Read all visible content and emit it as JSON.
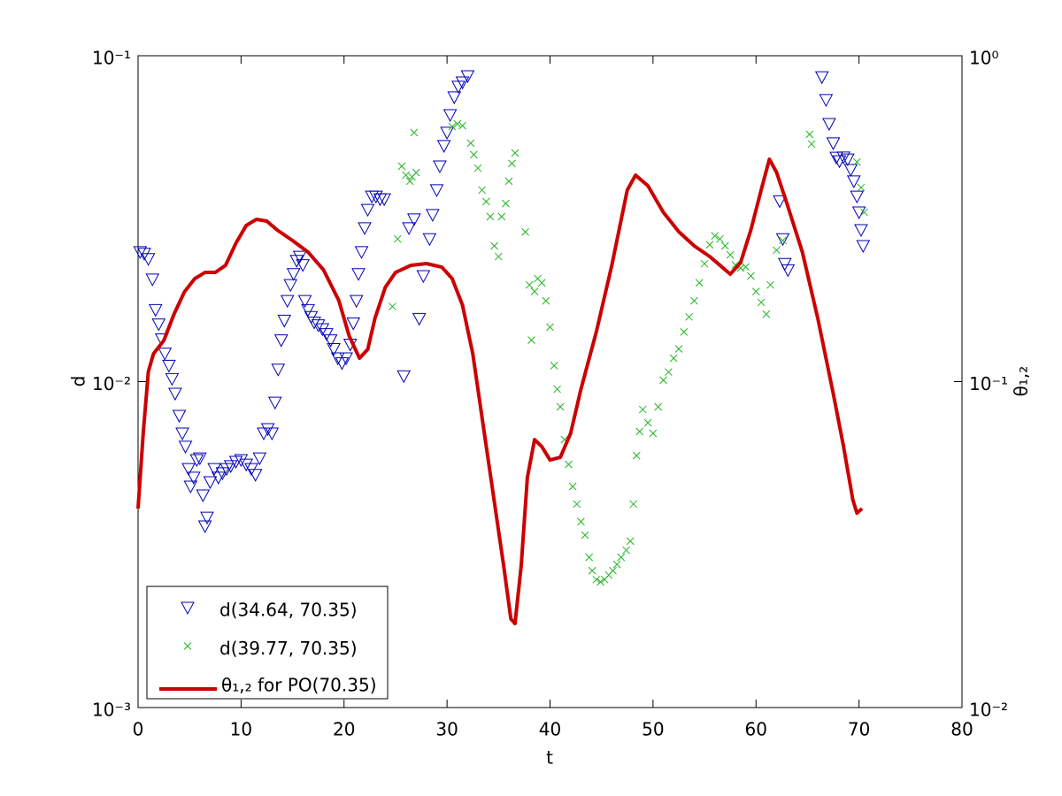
{
  "chart_data": {
    "type": "line",
    "xlabel": "t",
    "ylabel": "d",
    "y2label": "θ₁,₂",
    "xlim": [
      0,
      80
    ],
    "xticks": [
      0,
      10,
      20,
      30,
      40,
      50,
      60,
      70,
      80
    ],
    "ylim": [
      0.001,
      0.1
    ],
    "ylog": true,
    "yticks": [
      {
        "value": 0.001,
        "label": "10⁻³"
      },
      {
        "value": 0.01,
        "label": "10⁻²"
      },
      {
        "value": 0.1,
        "label": "10⁻¹"
      }
    ],
    "y2lim": [
      0.01,
      1
    ],
    "y2log": true,
    "y2ticks": [
      {
        "value": 0.01,
        "label": "10⁻²"
      },
      {
        "value": 0.1,
        "label": "10⁻¹"
      },
      {
        "value": 1,
        "label": "10⁰"
      }
    ],
    "grid": false,
    "legend": "lower left",
    "series": [
      {
        "name": "d(34.64, 70.35)",
        "type": "scatter",
        "marker": "triangle-down",
        "color": "#0000b4",
        "x": [
          0.2,
          0.6,
          1.0,
          1.4,
          1.7,
          2.0,
          2.3,
          2.6,
          3.0,
          3.3,
          3.6,
          4.0,
          4.3,
          4.6,
          4.9,
          5.1,
          5.4,
          5.7,
          6.0,
          6.3,
          6.5,
          6.7,
          7.0,
          7.4,
          7.8,
          8.2,
          8.6,
          9.0,
          9.5,
          10.0,
          10.5,
          11.0,
          11.4,
          11.8,
          12.2,
          12.6,
          13.0,
          13.3,
          13.6,
          13.9,
          14.2,
          14.5,
          14.8,
          15.1,
          15.4,
          15.7,
          16.0,
          16.2,
          16.5,
          16.8,
          17.1,
          17.5,
          17.9,
          18.3,
          18.7,
          19.0,
          19.4,
          19.8,
          20.2,
          20.6,
          20.9,
          21.2,
          21.4,
          21.7,
          22.0,
          22.3,
          22.7,
          23.1,
          23.5,
          23.9,
          25.8,
          26.3,
          26.8,
          27.3,
          27.7,
          28.3,
          28.6,
          29.0,
          29.3,
          29.7,
          30.0,
          30.3,
          30.7,
          31.1,
          31.5,
          32.0,
          62.3,
          62.6,
          62.8,
          63.1,
          66.4,
          66.8,
          67.1,
          67.5,
          67.8,
          68.1,
          68.5,
          68.9,
          69.2,
          69.5,
          69.8,
          70.0,
          70.2,
          70.4
        ],
        "values": [
          0.025,
          0.0247,
          0.0238,
          0.0206,
          0.0166,
          0.015,
          0.0135,
          0.0122,
          0.0112,
          0.0102,
          0.00919,
          0.00786,
          0.00694,
          0.00632,
          0.0054,
          0.00477,
          0.00508,
          0.00575,
          0.00582,
          0.00448,
          0.0036,
          0.00383,
          0.00492,
          0.0054,
          0.00508,
          0.00524,
          0.0054,
          0.00551,
          0.00568,
          0.00575,
          0.00557,
          0.0054,
          0.00518,
          0.00582,
          0.00694,
          0.00716,
          0.00694,
          0.00863,
          0.0109,
          0.0134,
          0.0154,
          0.0177,
          0.0198,
          0.0214,
          0.0235,
          0.0242,
          0.0228,
          0.0177,
          0.0166,
          0.0158,
          0.0152,
          0.0149,
          0.0145,
          0.014,
          0.0134,
          0.0126,
          0.0118,
          0.0114,
          0.0118,
          0.013,
          0.0151,
          0.0177,
          0.0214,
          0.025,
          0.0296,
          0.0337,
          0.037,
          0.037,
          0.0363,
          0.0363,
          0.0104,
          0.0296,
          0.0315,
          0.0156,
          0.0211,
          0.0274,
          0.0325,
          0.0387,
          0.0458,
          0.0529,
          0.0581,
          0.0658,
          0.0746,
          0.0804,
          0.0829,
          0.0866,
          0.0358,
          0.0274,
          0.023,
          0.022,
          0.086,
          0.0732,
          0.0618,
          0.0539,
          0.0487,
          0.0475,
          0.0488,
          0.0481,
          0.0447,
          0.0412,
          0.037,
          0.0331,
          0.0292,
          0.0261
        ]
      },
      {
        "name": "d(39.77, 70.35)",
        "type": "scatter",
        "marker": "x",
        "color": "#22b422",
        "x": [
          24.7,
          25.2,
          25.6,
          26.0,
          26.4,
          26.6,
          26.8,
          27.0,
          30.5,
          31.0,
          31.5,
          32.3,
          32.6,
          33.0,
          33.4,
          33.8,
          34.2,
          34.6,
          35.0,
          35.3,
          35.7,
          36.0,
          36.3,
          36.6,
          37.6,
          38.0,
          38.2,
          38.5,
          38.8,
          39.2,
          39.6,
          40.0,
          40.4,
          40.7,
          41.0,
          41.4,
          41.8,
          42.2,
          42.6,
          43.0,
          43.4,
          43.8,
          44.1,
          44.5,
          44.9,
          45.3,
          45.7,
          46.1,
          46.5,
          46.9,
          47.4,
          47.8,
          48.1,
          48.4,
          48.7,
          49.0,
          49.5,
          50.0,
          50.5,
          51.0,
          51.5,
          52.0,
          52.5,
          53.0,
          53.5,
          54.0,
          54.5,
          55.0,
          55.5,
          56.0,
          56.5,
          57.0,
          57.5,
          58.0,
          58.5,
          59.0,
          59.5,
          60.0,
          60.5,
          61.0,
          61.4,
          62.0,
          62.6,
          65.2,
          65.4,
          69.8,
          70.2,
          70.5
        ],
        "values": [
          0.017,
          0.0274,
          0.0458,
          0.043,
          0.0412,
          0.0425,
          0.0581,
          0.0438,
          0.0606,
          0.0618,
          0.061,
          0.0539,
          0.0497,
          0.0452,
          0.0387,
          0.0357,
          0.0321,
          0.0261,
          0.0242,
          0.0321,
          0.0352,
          0.0412,
          0.0467,
          0.0503,
          0.0288,
          0.0198,
          0.0134,
          0.0189,
          0.0207,
          0.0201,
          0.0177,
          0.0147,
          0.0112,
          0.00948,
          0.00837,
          0.00664,
          0.00557,
          0.00477,
          0.00421,
          0.00372,
          0.00338,
          0.00289,
          0.00263,
          0.00247,
          0.00243,
          0.00247,
          0.00255,
          0.00263,
          0.00275,
          0.00289,
          0.00304,
          0.00324,
          0.00421,
          0.00593,
          0.00703,
          0.00821,
          0.00748,
          0.00694,
          0.00837,
          0.0101,
          0.0107,
          0.0118,
          0.0126,
          0.0142,
          0.0158,
          0.0177,
          0.0201,
          0.023,
          0.0263,
          0.028,
          0.0274,
          0.0261,
          0.0245,
          0.0228,
          0.0223,
          0.0225,
          0.0211,
          0.0189,
          0.0175,
          0.0161,
          0.0198,
          0.0253,
          0.0271,
          0.0574,
          0.0536,
          0.0472,
          0.0394,
          0.0331
        ]
      },
      {
        "name": "θ₁,₂ for PO(70.35)",
        "type": "line",
        "axis": "y2",
        "color": "#cc0000",
        "x": [
          0,
          0.5,
          1,
          1.5,
          2.5,
          3.5,
          4.5,
          5.5,
          6.5,
          7.5,
          8.5,
          9.5,
          10.5,
          11.5,
          12.5,
          13.5,
          15,
          16.5,
          18,
          19.5,
          20.5,
          21.5,
          22.3,
          23,
          24,
          25,
          26.5,
          28,
          29.5,
          30.5,
          31.5,
          32.5,
          33.5,
          34.5,
          35.5,
          36.2,
          36.6,
          37.2,
          37.8,
          38.5,
          39.2,
          40,
          41,
          42,
          43,
          44.5,
          46,
          47.5,
          48.3,
          49.5,
          51,
          52.5,
          54,
          55.5,
          56.5,
          57.5,
          58.5,
          59.5,
          60.5,
          61.3,
          62,
          63,
          64.5,
          66,
          67.5,
          68.5,
          69.4,
          69.8,
          70.3
        ],
        "values": [
          0.0408,
          0.0694,
          0.1074,
          0.1218,
          0.1337,
          0.1613,
          0.1885,
          0.207,
          0.2163,
          0.2163,
          0.2275,
          0.2659,
          0.3013,
          0.3148,
          0.3109,
          0.292,
          0.2709,
          0.2498,
          0.2204,
          0.1771,
          0.138,
          0.118,
          0.1256,
          0.1563,
          0.1945,
          0.2163,
          0.2275,
          0.2303,
          0.2245,
          0.207,
          0.1717,
          0.1218,
          0.0738,
          0.0448,
          0.0272,
          0.0187,
          0.0181,
          0.0272,
          0.0508,
          0.0664,
          0.0632,
          0.0575,
          0.0586,
          0.0694,
          0.0948,
          0.1423,
          0.2275,
          0.387,
          0.43,
          0.3991,
          0.3309,
          0.2884,
          0.261,
          0.2421,
          0.2275,
          0.2137,
          0.2317,
          0.292,
          0.387,
          0.4813,
          0.4383,
          0.3522,
          0.2498,
          0.1563,
          0.0919,
          0.0632,
          0.0434,
          0.0395,
          0.0408
        ]
      }
    ]
  }
}
